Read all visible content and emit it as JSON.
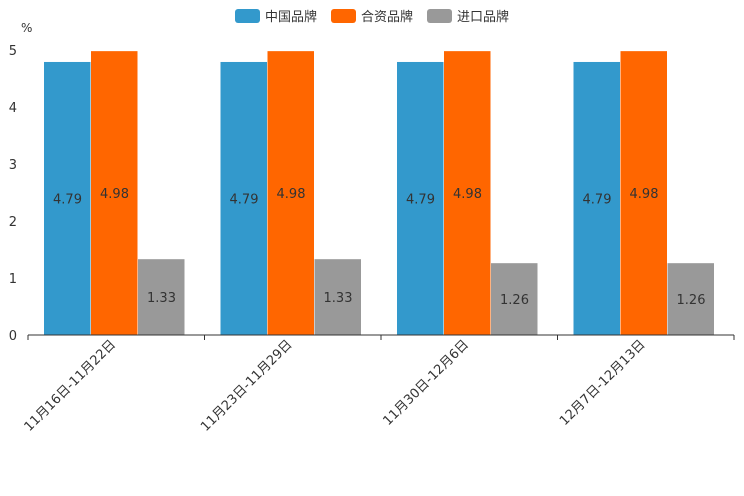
{
  "chart_data": {
    "type": "bar",
    "unit": "%",
    "categories": [
      "11月16日-11月22日",
      "11月23日-11月29日",
      "11月30日-12月6日",
      "12月7日-12月13日"
    ],
    "series": [
      {
        "name": "中国品牌",
        "color": "#3399cc",
        "values": [
          4.79,
          4.79,
          4.79,
          4.79
        ]
      },
      {
        "name": "合资品牌",
        "color": "#ff6600",
        "values": [
          4.98,
          4.98,
          4.98,
          4.98
        ]
      },
      {
        "name": "进口品牌",
        "color": "#999999",
        "values": [
          1.33,
          1.33,
          1.26,
          1.26
        ]
      }
    ],
    "yticks": [
      0,
      1,
      2,
      3,
      4,
      5
    ],
    "ylim": [
      0,
      5
    ],
    "legend": "top-center"
  }
}
